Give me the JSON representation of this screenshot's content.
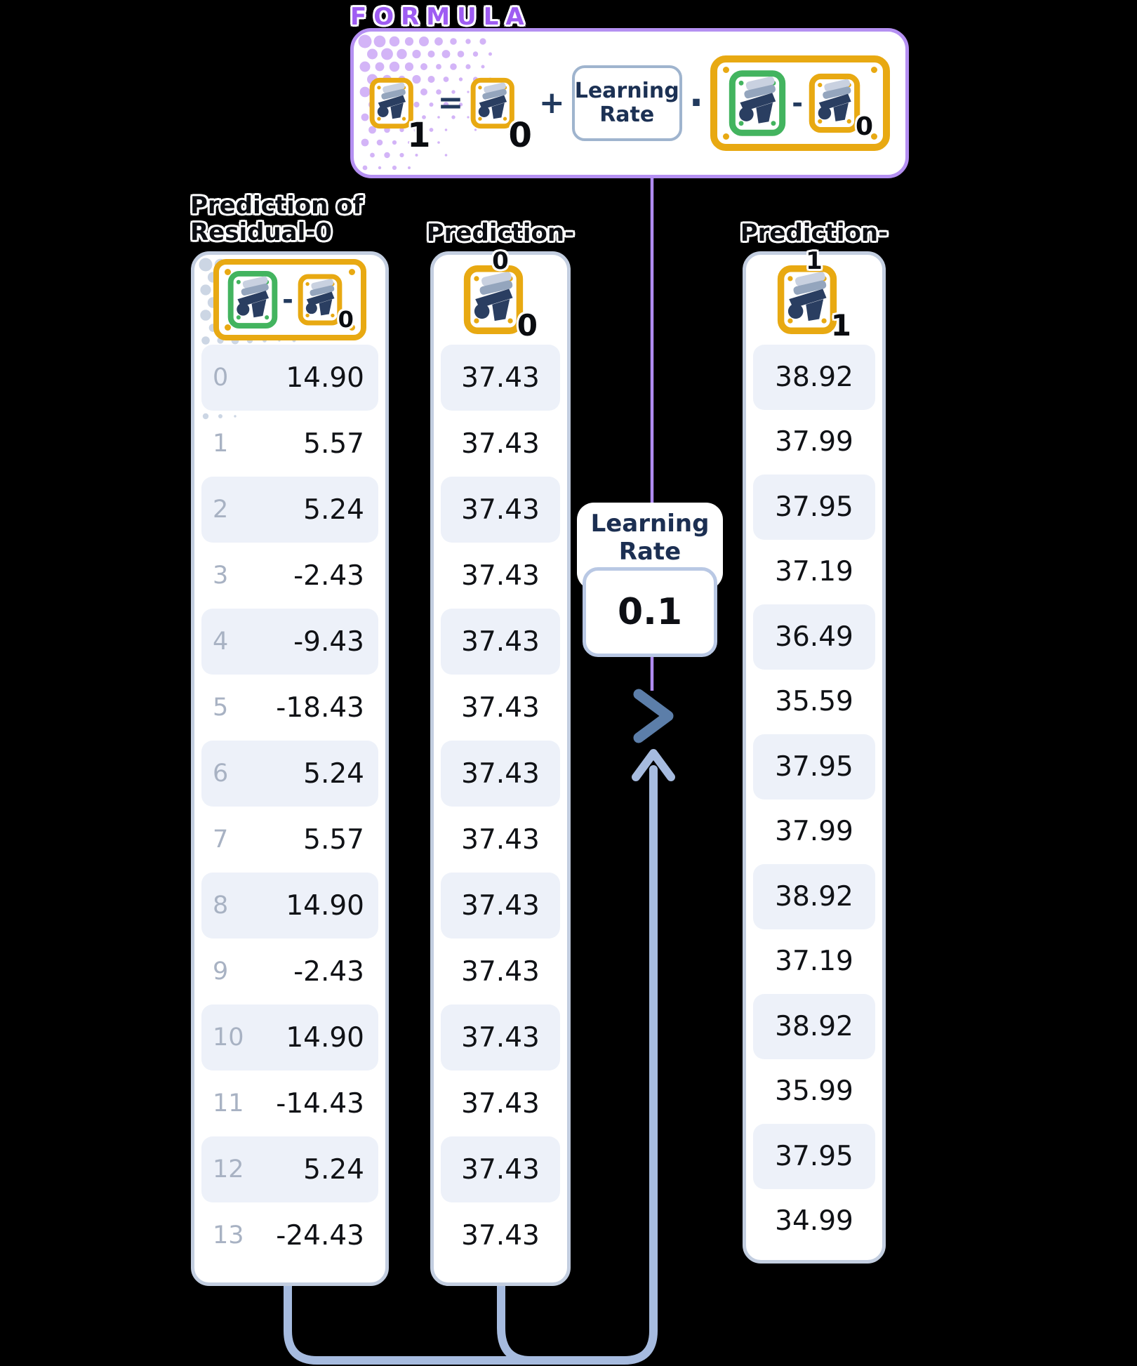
{
  "formula": {
    "title": "FORMULA",
    "lhs_subscript": "1",
    "equals_sign": "=",
    "base_subscript": "0",
    "plus_sign": "+",
    "learning_rate_line1": "Learning",
    "learning_rate_line2": "Rate",
    "multiply_sign": "·",
    "minus_sign": "-",
    "residual_subscript": "0"
  },
  "learning_rate_callout": {
    "label_line1": "Learning",
    "label_line2": "Rate",
    "value": "0.1"
  },
  "columns": [
    {
      "title_line1": "Prediction of",
      "title_line2": "Residual",
      "title_bold_suffix": "-0",
      "minus_sign": "-",
      "icon_subscript": "0",
      "indices": [
        "0",
        "1",
        "2",
        "3",
        "4",
        "5",
        "6",
        "7",
        "8",
        "9",
        "10",
        "11",
        "12",
        "13"
      ],
      "values": [
        "14.90",
        "5.57",
        "5.24",
        "-2.43",
        "-9.43",
        "-18.43",
        "5.24",
        "5.57",
        "14.90",
        "-2.43",
        "14.90",
        "-14.43",
        "5.24",
        "-24.43"
      ]
    },
    {
      "title": "Prediction",
      "title_bold_suffix": "-0",
      "icon_subscript": "0",
      "values": [
        "37.43",
        "37.43",
        "37.43",
        "37.43",
        "37.43",
        "37.43",
        "37.43",
        "37.43",
        "37.43",
        "37.43",
        "37.43",
        "37.43",
        "37.43",
        "37.43"
      ]
    },
    {
      "title": "Prediction",
      "title_bold_suffix": "-1",
      "icon_subscript": "1",
      "values": [
        "38.92",
        "37.99",
        "37.95",
        "37.19",
        "36.49",
        "35.59",
        "37.95",
        "37.99",
        "38.92",
        "37.19",
        "38.92",
        "35.99",
        "37.95",
        "34.99"
      ]
    }
  ],
  "colors": {
    "background": "#000000",
    "formula_border_purple": "#b590f2",
    "formula_title_purple": "#9e5cf2",
    "connector_purple": "#b18cf2",
    "icon_gold": "#e8a912",
    "icon_green": "#43b45f",
    "operator_navy": "#223a5e",
    "card_border": "#c3cee0",
    "row_stripe": "#edf1f9",
    "index_gray": "#a8b2c3",
    "chevron_blue": "#5c7ea9",
    "arrow_blue": "#a6bbdf"
  }
}
